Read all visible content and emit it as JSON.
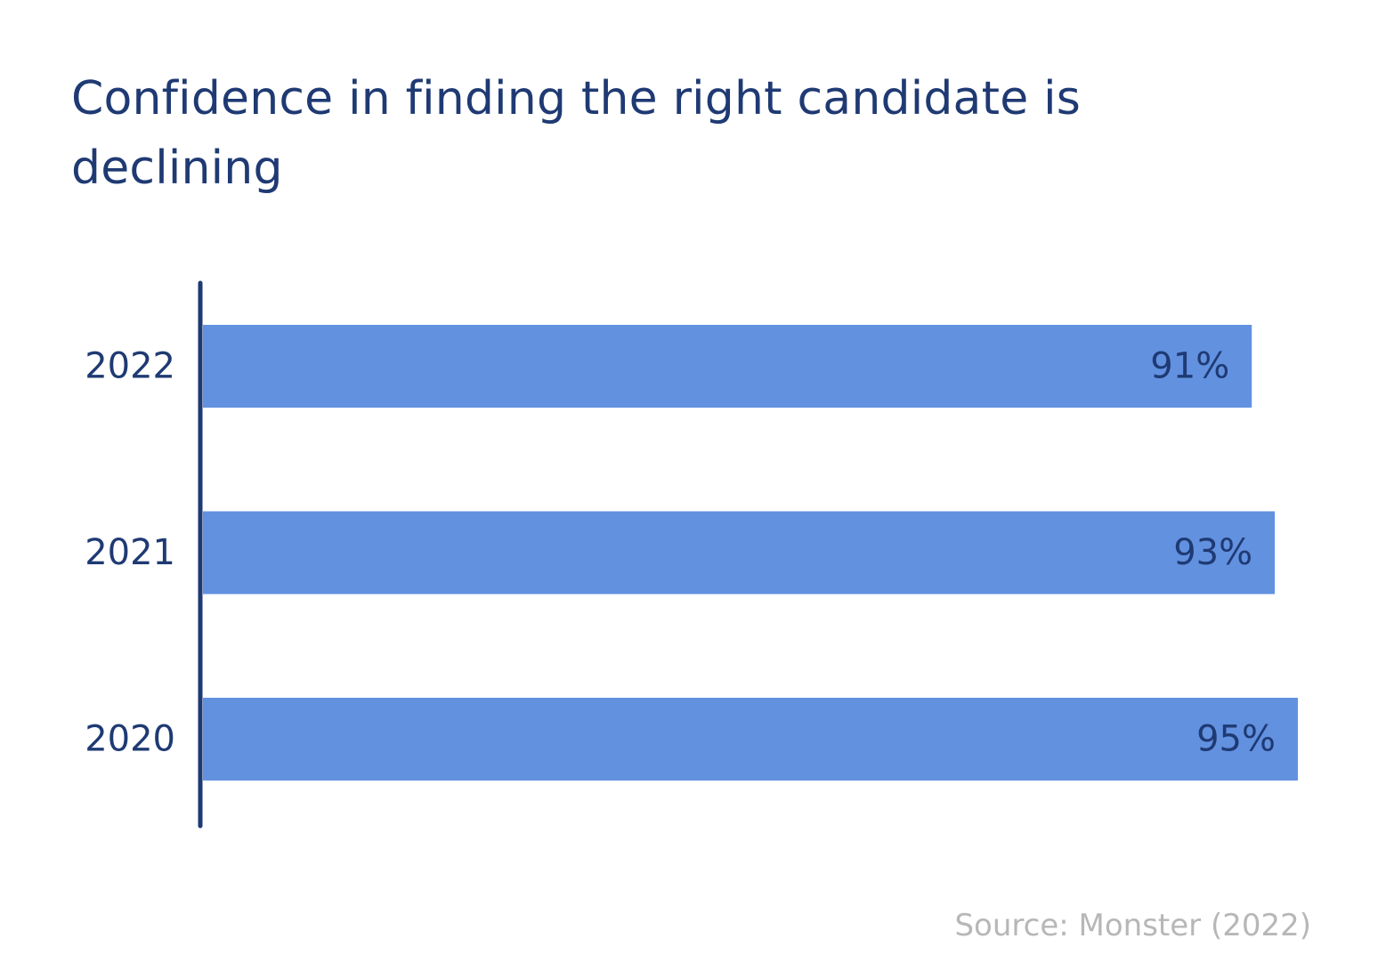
{
  "chart_data": {
    "type": "bar",
    "orientation": "horizontal",
    "title": "Confidence in finding the right candidate is declining",
    "categories": [
      "2022",
      "2021",
      "2020"
    ],
    "values": [
      91,
      93,
      95
    ],
    "value_labels": [
      "91%",
      "93%",
      "95%"
    ],
    "unit": "%",
    "xlabel": "",
    "ylabel": "",
    "xlim": [
      0,
      100
    ],
    "grid": false,
    "legend": "none",
    "source": "Source: Monster (2022)"
  },
  "colors": {
    "bar": "#6291e0",
    "axis": "#1f3a73",
    "title": "#1f3a73",
    "category_label": "#1f3a73",
    "value_label": "#1f3a73",
    "source": "#b7b7b7"
  }
}
